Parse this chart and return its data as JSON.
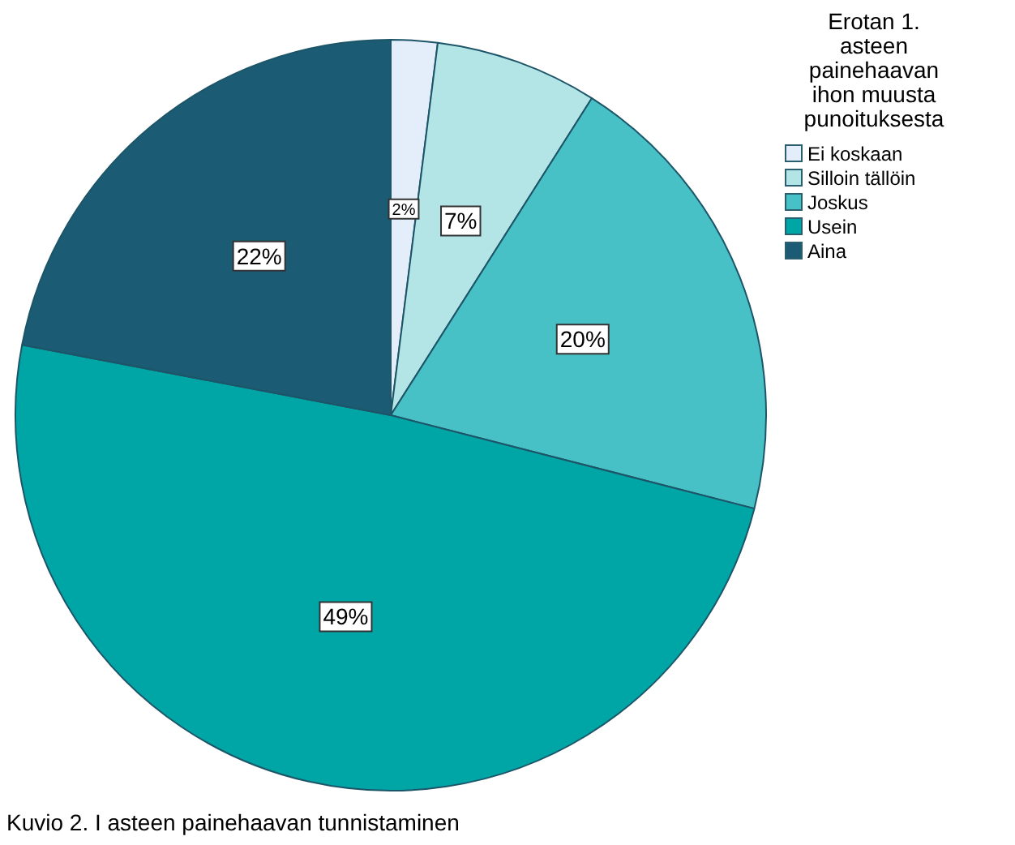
{
  "chart_data": {
    "type": "pie",
    "legend_title": "Erotan 1. asteen painehaavan ihon muusta punoituksesta",
    "categories": [
      "Ei koskaan",
      "Silloin tällöin",
      "Joskus",
      "Usein",
      "Aina"
    ],
    "values": [
      2,
      7,
      20,
      49,
      22
    ],
    "colors": [
      "#e3eefa",
      "#b3e5e6",
      "#48c1c6",
      "#00a6a6",
      "#1b5c74"
    ],
    "value_labels": [
      "2%",
      "7%",
      "20%",
      "49%",
      "22%"
    ],
    "legend": "top right",
    "annotations": [
      "Kuvio 2. I asteen painehaavan tunnistaminen"
    ]
  }
}
